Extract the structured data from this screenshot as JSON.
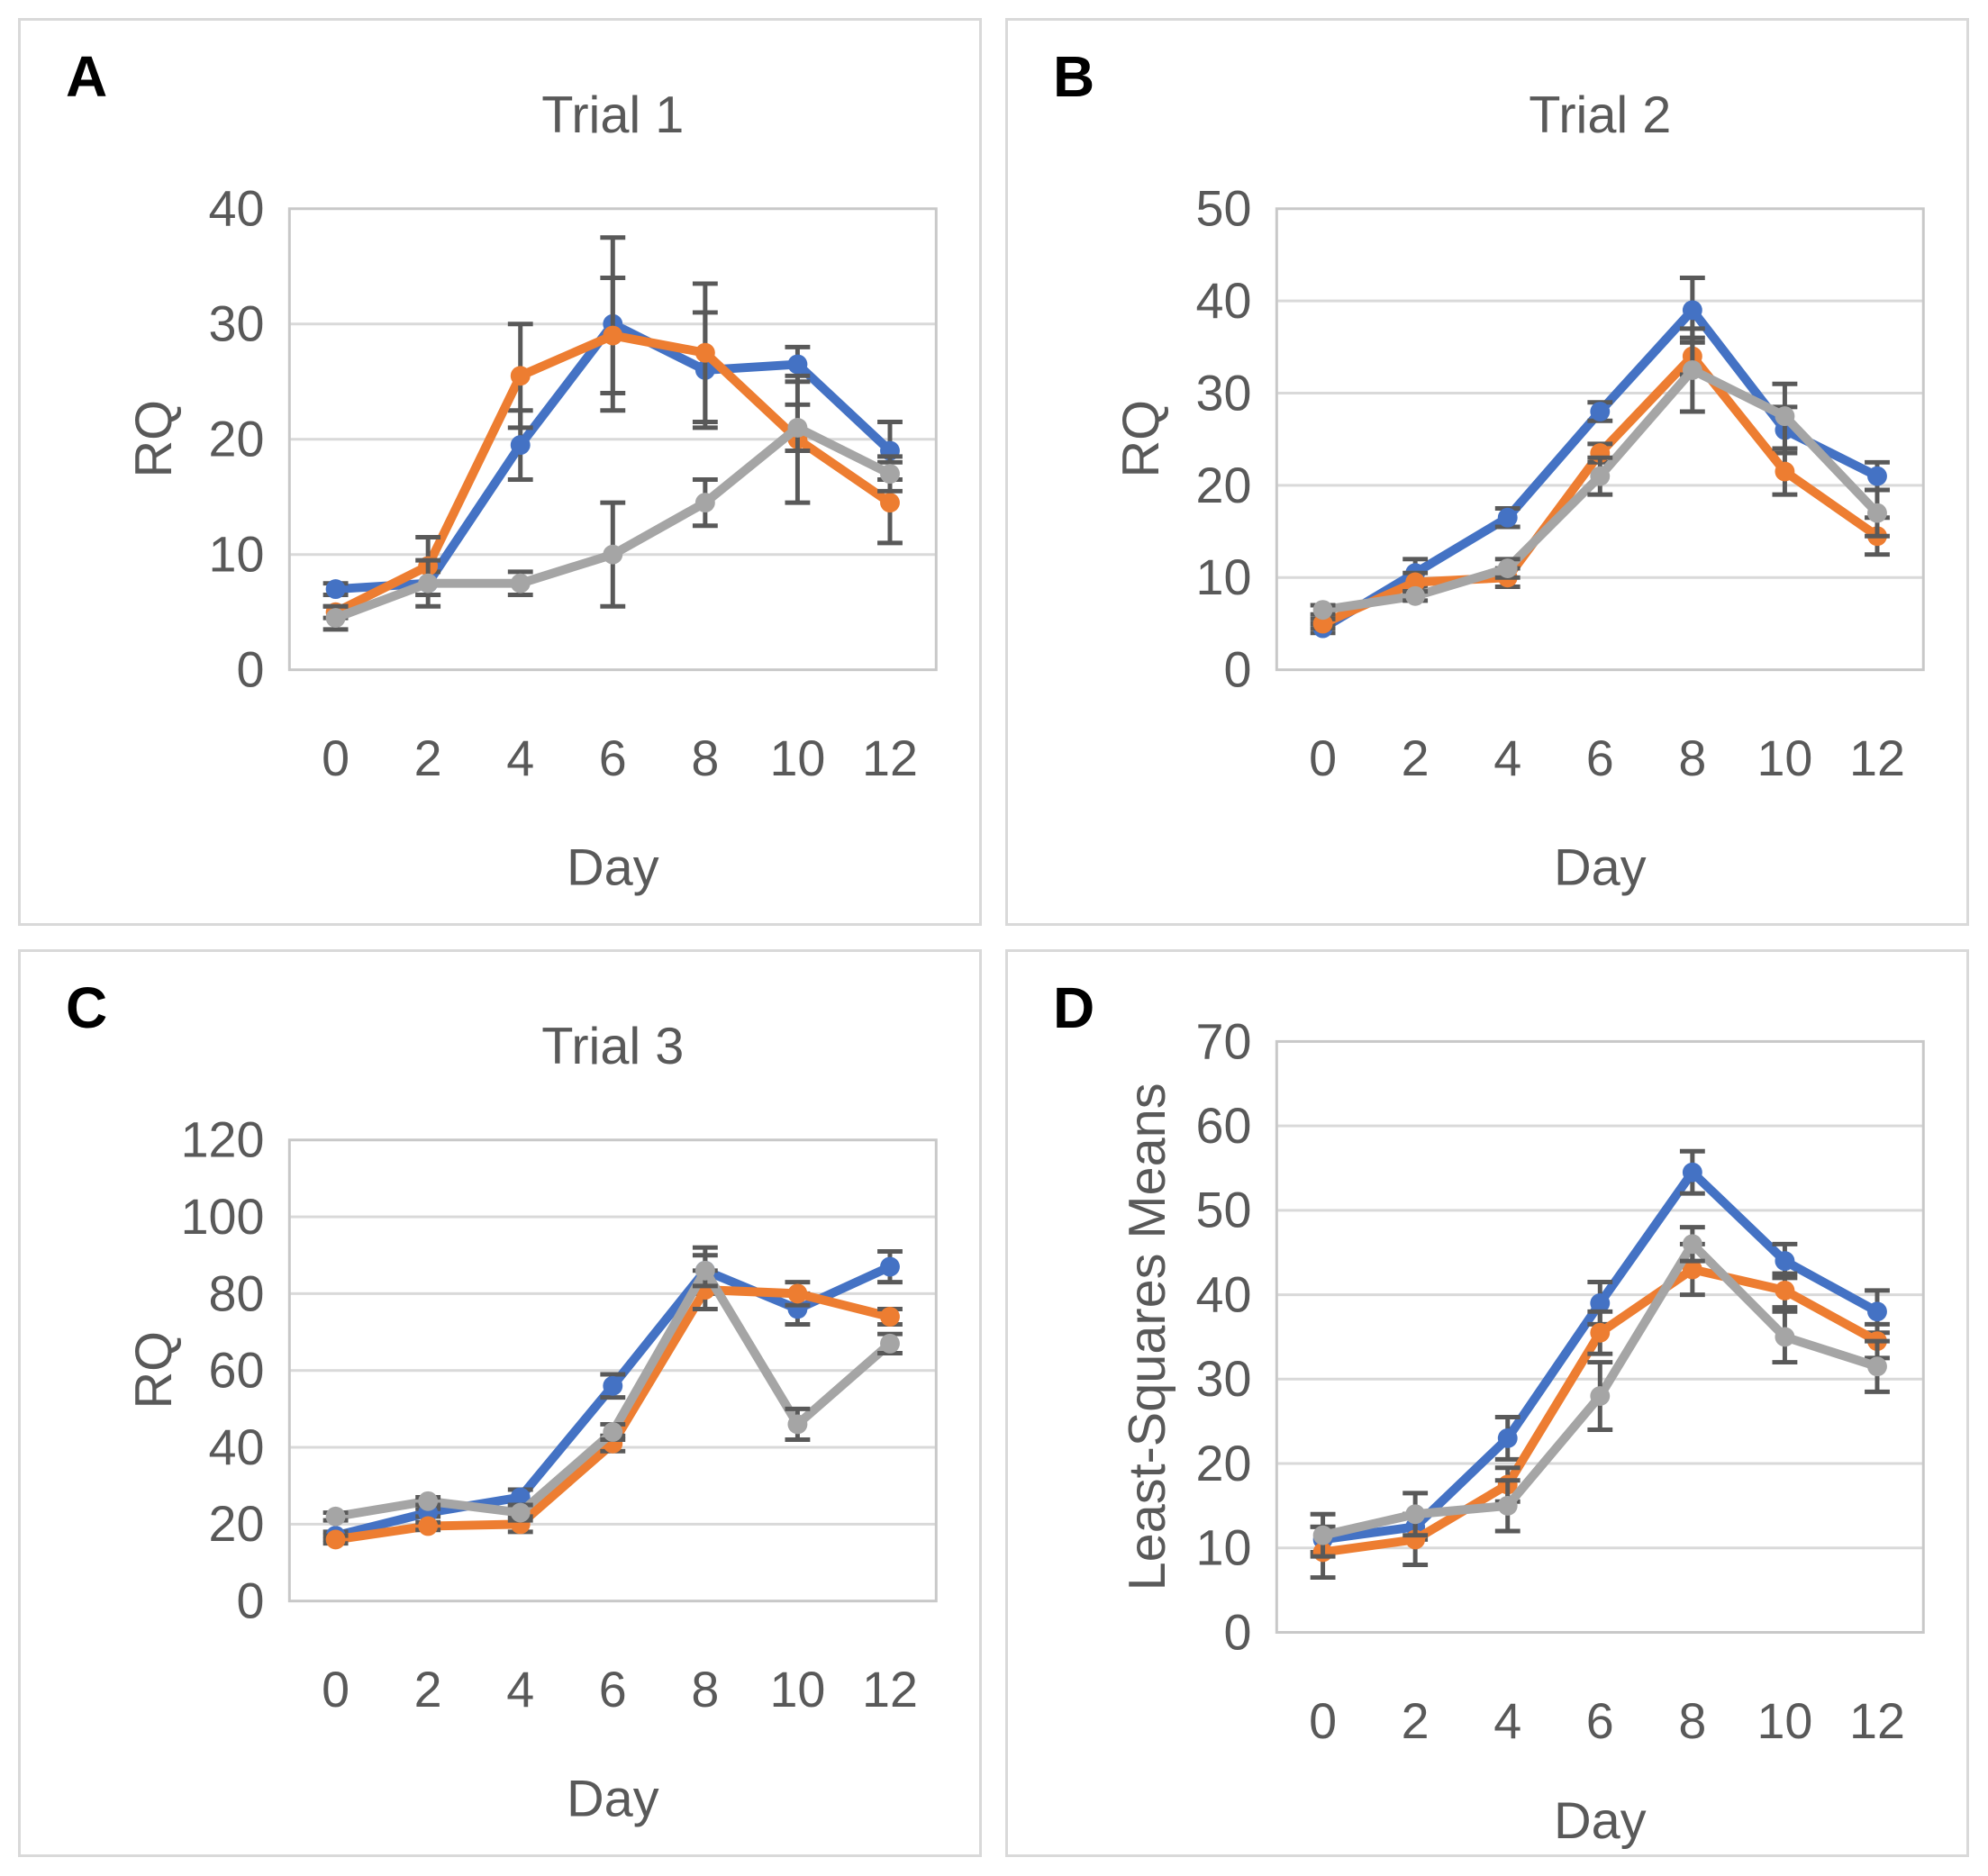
{
  "figure_type": "four-panel line chart figure with error bars, no legend",
  "colors": {
    "series_blue": "#4472C4",
    "series_orange": "#ED7D31",
    "series_gray": "#A5A5A5",
    "error_bar": "#595959",
    "axis_text": "#595959",
    "gridline": "#D9D9D9",
    "plot_border": "#C8C8C8",
    "panel_border": "#D9D9D9",
    "panel_letter": "#000000",
    "background": "#FFFFFF"
  },
  "chart_data": [
    {
      "type": "line",
      "panel": "A",
      "title": "Trial 1",
      "xlabel": "Day",
      "ylabel": "RQ",
      "categories": [
        0,
        2,
        4,
        6,
        8,
        10,
        12
      ],
      "ylim": [
        0,
        40
      ],
      "ytick_step": 10,
      "grid": "horizontal",
      "legend": "none",
      "markers": "circle",
      "error_bars": true,
      "series": [
        {
          "name": "blue",
          "color": "#4472C4",
          "values": [
            7,
            7.5,
            19.5,
            30,
            26,
            26.5,
            19
          ],
          "errors": [
            0.5,
            1,
            3,
            7.5,
            5,
            1.5,
            2.5
          ]
        },
        {
          "name": "orange",
          "color": "#ED7D31",
          "values": [
            5,
            9,
            25.5,
            29,
            27.5,
            20,
            14.5
          ],
          "errors": [
            0.5,
            2.5,
            4.5,
            5,
            6,
            5.5,
            3.5
          ]
        },
        {
          "name": "gray",
          "color": "#A5A5A5",
          "values": [
            4.5,
            7.5,
            7.5,
            10,
            14.5,
            21,
            17
          ],
          "errors": [
            1,
            2,
            1,
            4.5,
            2,
            2,
            1.5
          ]
        }
      ]
    },
    {
      "type": "line",
      "panel": "B",
      "title": "Trial 2",
      "xlabel": "Day",
      "ylabel": "RQ",
      "categories": [
        0,
        2,
        4,
        6,
        8,
        10,
        12
      ],
      "ylim": [
        0,
        50
      ],
      "ytick_step": 10,
      "grid": "horizontal",
      "legend": "none",
      "markers": "circle",
      "error_bars": true,
      "series": [
        {
          "name": "blue",
          "color": "#4472C4",
          "values": [
            4.5,
            10.5,
            16.5,
            28,
            39,
            26,
            21
          ],
          "errors": [
            0.5,
            1.5,
            1,
            1,
            3.5,
            2.5,
            1.5
          ]
        },
        {
          "name": "orange",
          "color": "#ED7D31",
          "values": [
            5,
            9.5,
            10,
            23.5,
            34,
            21.5,
            14.5
          ],
          "errors": [
            0.5,
            1,
            1,
            1,
            2,
            2.5,
            2
          ]
        },
        {
          "name": "gray",
          "color": "#A5A5A5",
          "values": [
            6.5,
            8,
            11,
            21,
            32.5,
            27.5,
            17
          ],
          "errors": [
            0.5,
            0.5,
            1,
            2,
            4.5,
            3.5,
            2.5
          ]
        }
      ]
    },
    {
      "type": "line",
      "panel": "C",
      "title": "Trial 3",
      "xlabel": "Day",
      "ylabel": "RQ",
      "categories": [
        0,
        2,
        4,
        6,
        8,
        10,
        12
      ],
      "ylim": [
        0,
        120
      ],
      "ytick_step": 20,
      "grid": "horizontal",
      "legend": "none",
      "markers": "circle",
      "error_bars": true,
      "series": [
        {
          "name": "blue",
          "color": "#4472C4",
          "values": [
            17,
            23,
            27,
            56,
            86,
            76,
            87
          ],
          "errors": [
            1,
            1,
            2,
            3,
            6,
            4,
            4
          ]
        },
        {
          "name": "orange",
          "color": "#ED7D31",
          "values": [
            16,
            19.5,
            20,
            41,
            81,
            80,
            74
          ],
          "errors": [
            1,
            1,
            2,
            2,
            5,
            3,
            2
          ]
        },
        {
          "name": "gray",
          "color": "#A5A5A5",
          "values": [
            22,
            26,
            23,
            44,
            86,
            46,
            67
          ],
          "errors": [
            1,
            1,
            2,
            2,
            4,
            4,
            2.5
          ]
        }
      ]
    },
    {
      "type": "line",
      "panel": "D",
      "title": null,
      "xlabel": "Day",
      "ylabel": "Least-Squares Means",
      "categories": [
        0,
        2,
        4,
        6,
        8,
        10,
        12
      ],
      "ylim": [
        0,
        70
      ],
      "ytick_step": 10,
      "grid": "horizontal",
      "legend": "none",
      "markers": "circle",
      "error_bars": true,
      "series": [
        {
          "name": "blue",
          "color": "#4472C4",
          "values": [
            11,
            12.5,
            23,
            39,
            54.5,
            44,
            38
          ],
          "errors": [
            1.5,
            1.5,
            2.5,
            2.5,
            2.5,
            2,
            2.5
          ]
        },
        {
          "name": "orange",
          "color": "#ED7D31",
          "values": [
            9.5,
            11,
            17.5,
            35.5,
            43,
            40.5,
            34.5
          ],
          "errors": [
            3,
            3,
            2,
            2.5,
            3,
            2,
            2
          ]
        },
        {
          "name": "gray",
          "color": "#A5A5A5",
          "values": [
            11.5,
            14,
            15,
            28,
            46,
            35,
            31.5
          ],
          "errors": [
            2.5,
            2.5,
            3,
            4,
            2,
            3,
            3
          ]
        }
      ]
    }
  ]
}
